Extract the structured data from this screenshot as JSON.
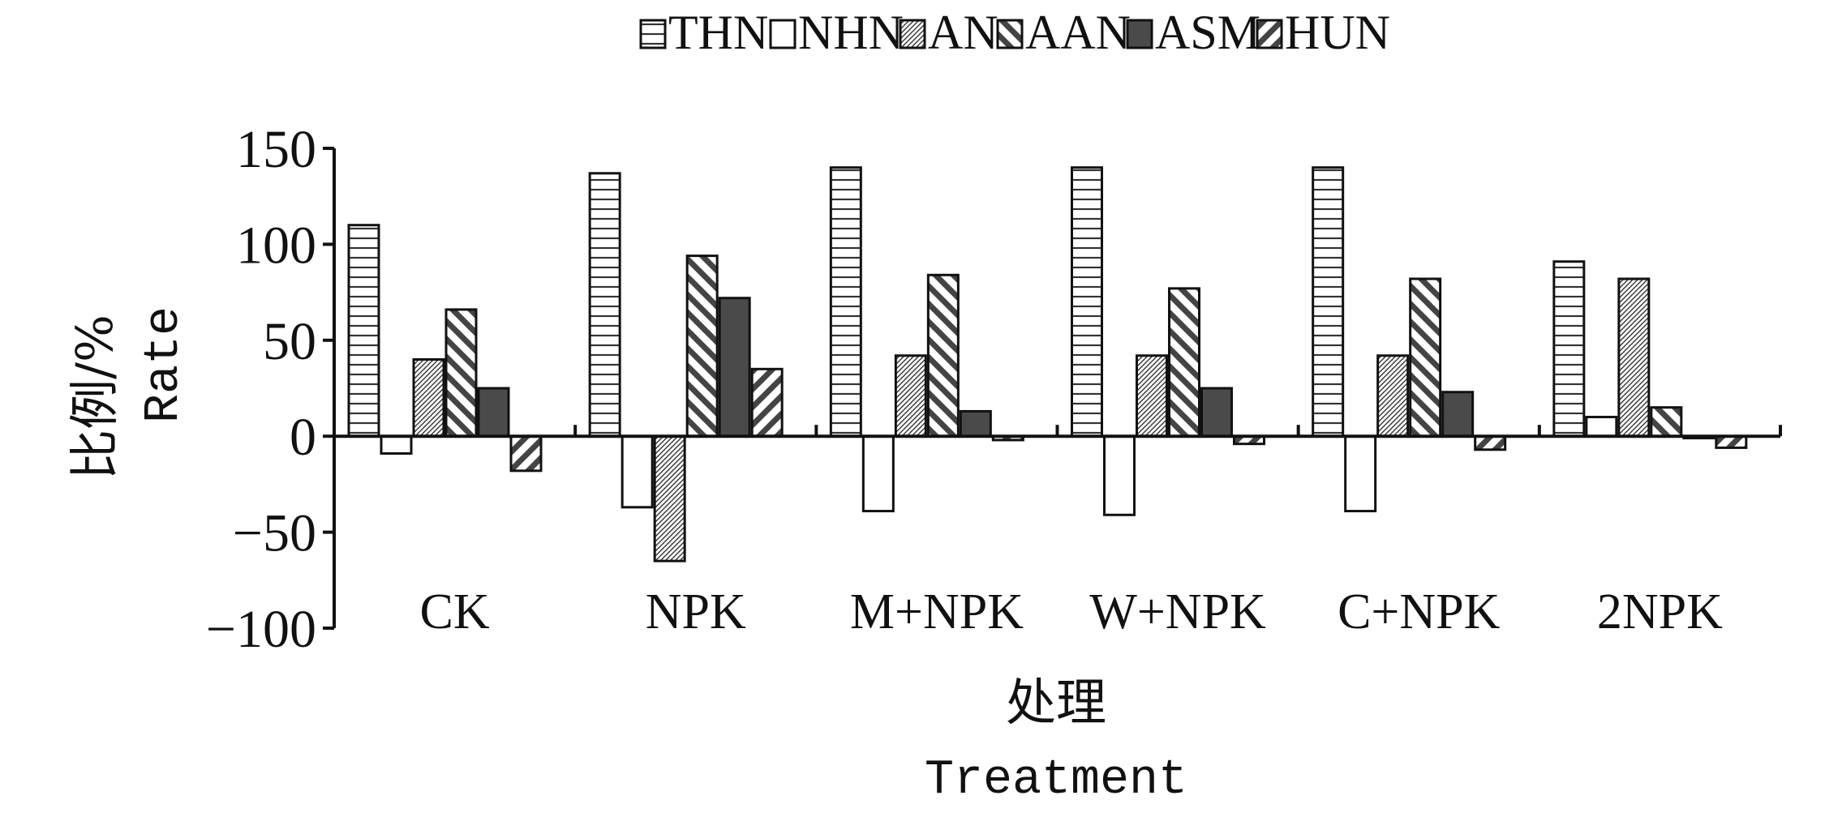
{
  "chart_data": {
    "type": "bar",
    "categories": [
      "CK",
      "NPK",
      "M+NPK",
      "W+NPK",
      "C+NPK",
      "2NPK"
    ],
    "series": [
      {
        "name": "THN",
        "pattern": "hlines",
        "values": [
          110,
          137,
          140,
          140,
          140,
          91
        ]
      },
      {
        "name": "NHN",
        "pattern": "blank",
        "values": [
          -9,
          -37,
          -39,
          -41,
          -39,
          10
        ]
      },
      {
        "name": "AN",
        "pattern": "fine-diag",
        "values": [
          40,
          -65,
          42,
          42,
          42,
          82
        ]
      },
      {
        "name": "AAN",
        "pattern": "back-diag",
        "values": [
          66,
          94,
          84,
          77,
          82,
          15
        ]
      },
      {
        "name": "ASM",
        "pattern": "solid",
        "values": [
          25,
          72,
          13,
          25,
          23,
          -1
        ]
      },
      {
        "name": "HUN",
        "pattern": "fwd-diag",
        "values": [
          -18,
          35,
          -2,
          -4,
          -7,
          -6
        ]
      }
    ],
    "ylim": [
      -100,
      150
    ],
    "yticks": [
      -100,
      -50,
      0,
      50,
      100,
      150
    ],
    "ytick_labels": [
      "−100",
      "−50",
      "0",
      "50",
      "100",
      "150"
    ],
    "ylabel": "比例/%",
    "ylabel_en": "Rate",
    "xlabel": "处理",
    "xlabel_en": "Treatment",
    "legend_position": "top",
    "grid": false,
    "colors": {
      "bar_fill": "#ffffff",
      "bar_stroke": "#111111",
      "solid": "#4a4a4a",
      "hatch": "#333333"
    }
  }
}
